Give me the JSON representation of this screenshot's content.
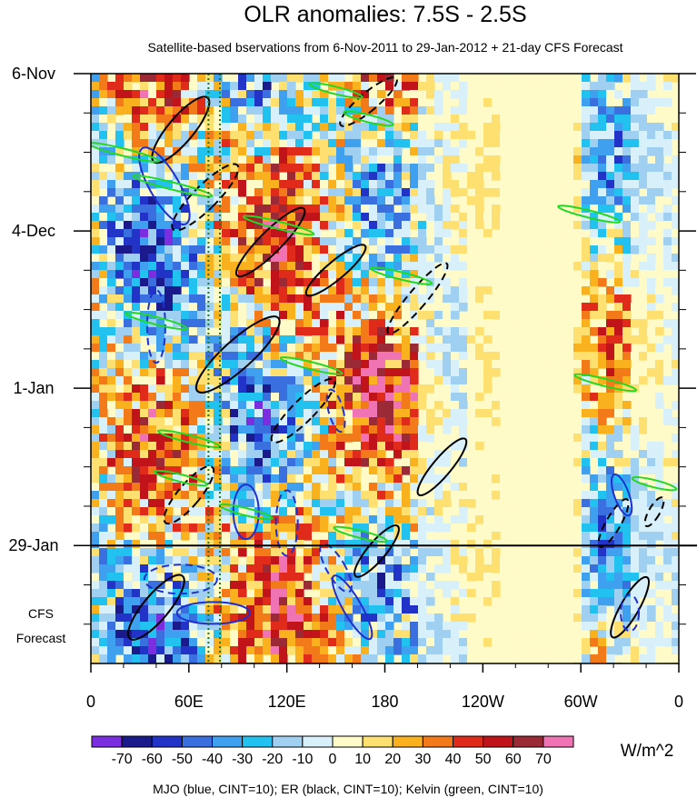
{
  "chart_data": {
    "type": "heatmap",
    "title": "OLR anomalies: 7.5S - 2.5S",
    "subtitle": "Satellite-based bservations from 6-Nov-2011 to 29-Jan-2012 + 21-day CFS Forecast",
    "x_tick_labels": [
      "0",
      "60E",
      "120E",
      "180",
      "120W",
      "60W",
      "0"
    ],
    "x_ticks_lon": [
      0,
      60,
      120,
      180,
      240,
      300,
      360
    ],
    "x_range": [
      0,
      360
    ],
    "y_tick_labels": [
      "6-Nov",
      "4-Dec",
      "1-Jan",
      "29-Jan"
    ],
    "y_ticks_day": [
      0,
      28,
      56,
      84
    ],
    "y_range_days": [
      0,
      105
    ],
    "forecast_label_line1": "CFS",
    "forecast_label_line2": "Forecast",
    "forecast_start_day": 84,
    "colorbar": {
      "labels": [
        "-70",
        "-60",
        "-50",
        "-40",
        "-30",
        "-20",
        "-10",
        "0",
        "10",
        "20",
        "30",
        "40",
        "50",
        "60",
        "70"
      ],
      "units": "W/m^2",
      "colors": [
        "#7a2ee0",
        "#1a1a8c",
        "#2233c8",
        "#3a6fe0",
        "#3fa0f0",
        "#22c2f0",
        "#9fd0f2",
        "#d8f0fa",
        "#fffbc8",
        "#fde070",
        "#f9b21e",
        "#f27a18",
        "#e02a1a",
        "#c0141a",
        "#9a2a36",
        "#f074b4"
      ]
    },
    "contour_legend": "MJO (blue, CINT=10); ER (black, CINT=10); Kelvin (green, CINT=10)",
    "series_colors": {
      "mjo": "#1f2fd0",
      "er": "#000000",
      "kelvin": "#22d822"
    },
    "grid": false
  }
}
